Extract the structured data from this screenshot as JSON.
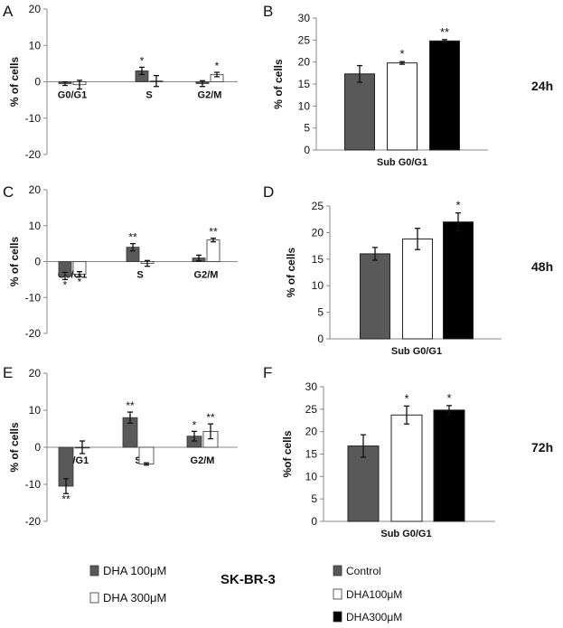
{
  "colors": {
    "dark": "#595959",
    "white": "#ffffff",
    "black": "#000000",
    "axis": "#888888",
    "sig": "#555555"
  },
  "figure": {
    "cell_line": "SK-BR-3",
    "rows": [
      {
        "time_label": "24h"
      },
      {
        "time_label": "48h"
      },
      {
        "time_label": "72h"
      }
    ],
    "legend_left": [
      {
        "label": "DHA 100μM",
        "color": "#595959"
      },
      {
        "label": "DHA 300μM",
        "color": "#ffffff"
      }
    ],
    "legend_right": [
      {
        "label": "Control",
        "color": "#595959"
      },
      {
        "label": "DHA100μM",
        "color": "#ffffff"
      },
      {
        "label": "DHA300μM",
        "color": "#000000"
      }
    ]
  },
  "chart_data": [
    {
      "panel": "A",
      "type": "bar",
      "ylabel": "% of cells",
      "ylim": [
        -20,
        20
      ],
      "yticks": [
        "20",
        "10",
        "0",
        "-10",
        "-20"
      ],
      "categories": [
        "G0/G1",
        "S",
        "G2/M"
      ],
      "series": [
        {
          "color": "#595959",
          "values": [
            -0.5,
            3,
            -0.5
          ],
          "errors": [
            0.5,
            1,
            0.8
          ],
          "sig": [
            "",
            "*",
            ""
          ]
        },
        {
          "color": "#ffffff",
          "values": [
            -0.8,
            0.2,
            2
          ],
          "errors": [
            1.2,
            1.5,
            0.6
          ],
          "sig": [
            "",
            "",
            "*"
          ]
        }
      ]
    },
    {
      "panel": "B",
      "type": "bar",
      "ylabel": "% of cells",
      "ylim": [
        0,
        30
      ],
      "yticks": [
        "30",
        "25",
        "20",
        "15",
        "10",
        "5",
        "0"
      ],
      "xlabel": "Sub G0/G1",
      "series": [
        {
          "color": "#595959",
          "value": 17.3,
          "error": 1.9,
          "sig": ""
        },
        {
          "color": "#ffffff",
          "value": 19.8,
          "error": 0.3,
          "sig": "*"
        },
        {
          "color": "#000000",
          "value": 24.8,
          "error": 0.3,
          "sig": "**"
        }
      ]
    },
    {
      "panel": "C",
      "type": "bar",
      "ylabel": "% of cells",
      "ylim": [
        -20,
        20
      ],
      "yticks": [
        "20",
        "10",
        "0",
        "-10",
        "-20"
      ],
      "categories": [
        "G0/G1",
        "S",
        "G2/M"
      ],
      "series": [
        {
          "color": "#595959",
          "values": [
            -4,
            4,
            1
          ],
          "errors": [
            1,
            1,
            0.8
          ],
          "sig": [
            "*",
            "**",
            ""
          ]
        },
        {
          "color": "#ffffff",
          "values": [
            -3.5,
            -0.5,
            6
          ],
          "errors": [
            0.7,
            0.8,
            0.5
          ],
          "sig": [
            "*",
            "",
            "**"
          ]
        }
      ]
    },
    {
      "panel": "D",
      "type": "bar",
      "ylabel": "% of cells",
      "ylim": [
        0,
        25
      ],
      "yticks": [
        "25",
        "20",
        "15",
        "10",
        "5",
        "0"
      ],
      "xlabel": "Sub G0/G1",
      "series": [
        {
          "color": "#595959",
          "value": 16,
          "error": 1.2,
          "sig": ""
        },
        {
          "color": "#ffffff",
          "value": 18.8,
          "error": 2,
          "sig": ""
        },
        {
          "color": "#000000",
          "value": 22,
          "error": 1.7,
          "sig": "*"
        }
      ]
    },
    {
      "panel": "E",
      "type": "bar",
      "ylabel": "% of cells",
      "ylim": [
        -20,
        20
      ],
      "yticks": [
        "20",
        "10",
        "0",
        "-10",
        "-20"
      ],
      "categories": [
        "G0/G1",
        "S",
        "G2/M"
      ],
      "series": [
        {
          "color": "#595959",
          "values": [
            -10.5,
            8,
            3
          ],
          "errors": [
            2,
            1.5,
            1.3
          ],
          "sig": [
            "**",
            "**",
            "*"
          ]
        },
        {
          "color": "#ffffff",
          "values": [
            0,
            -4.5,
            4.3
          ],
          "errors": [
            1.7,
            0.3,
            2
          ],
          "sig": [
            "",
            "",
            "**"
          ]
        }
      ]
    },
    {
      "panel": "F",
      "type": "bar",
      "ylabel": "%of cells",
      "ylim": [
        0,
        30
      ],
      "yticks": [
        "30",
        "25",
        "20",
        "15",
        "10",
        "5",
        "0"
      ],
      "xlabel": "Sub G0/G1",
      "series": [
        {
          "color": "#595959",
          "value": 16.8,
          "error": 2.5,
          "sig": ""
        },
        {
          "color": "#ffffff",
          "value": 23.7,
          "error": 2,
          "sig": "*"
        },
        {
          "color": "#000000",
          "value": 24.8,
          "error": 1,
          "sig": "*"
        }
      ]
    }
  ]
}
